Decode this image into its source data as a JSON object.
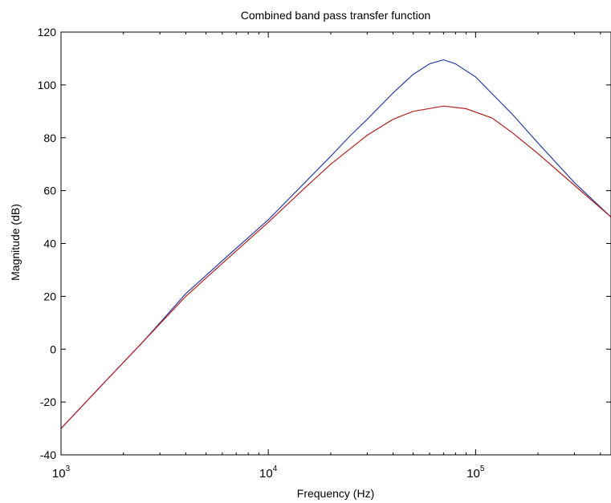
{
  "chart_data": {
    "type": "line",
    "title": "Combined band pass transfer function",
    "xlabel": "Frequency  (Hz)",
    "ylabel": "Magnitude (dB)",
    "xscale": "log",
    "xlim": [
      1000,
      450000
    ],
    "ylim": [
      -40,
      120
    ],
    "grid": false,
    "x_ticks": [
      {
        "value": 1000,
        "base": "10",
        "exp": "3"
      },
      {
        "value": 10000,
        "base": "10",
        "exp": "4"
      },
      {
        "value": 100000,
        "base": "10",
        "exp": "5"
      }
    ],
    "y_ticks": [
      -40,
      -20,
      0,
      20,
      40,
      60,
      80,
      100,
      120
    ],
    "series": [
      {
        "color": "#2b3f9e",
        "x": [
          1000,
          1600,
          2500,
          4000,
          6300,
          10000,
          15000,
          20000,
          25000,
          30000,
          40000,
          50000,
          60000,
          70000,
          80000,
          100000,
          150000,
          200000,
          300000,
          450000
        ],
        "y": [
          -30,
          -13,
          3,
          21,
          35,
          49,
          63,
          73,
          81,
          87,
          97,
          104,
          108,
          109.5,
          108,
          103,
          89,
          78,
          63,
          50
        ]
      },
      {
        "color": "#b22222",
        "x": [
          1000,
          1600,
          2500,
          4000,
          6300,
          10000,
          15000,
          20000,
          30000,
          40000,
          50000,
          70000,
          90000,
          120000,
          150000,
          200000,
          300000,
          450000
        ],
        "y": [
          -30,
          -13,
          3,
          20,
          34,
          48,
          61,
          70,
          81,
          87,
          90,
          92,
          91,
          87.5,
          82,
          74,
          62,
          50
        ]
      }
    ]
  }
}
